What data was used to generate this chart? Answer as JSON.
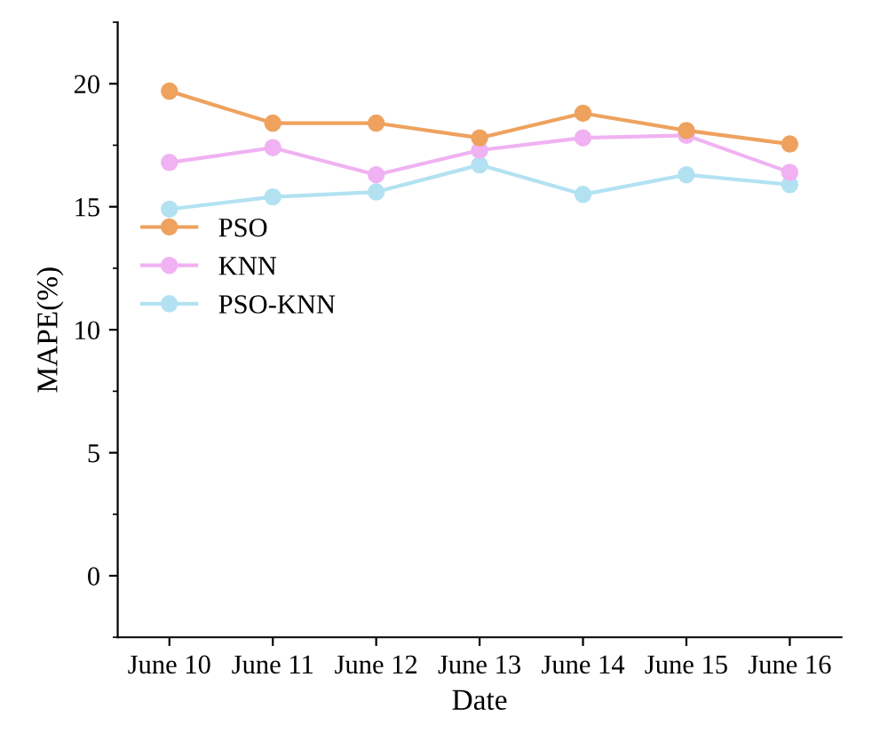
{
  "chart_data": {
    "type": "line",
    "xlabel": "Date",
    "ylabel": "MAPE(%)",
    "categories": [
      "June 10",
      "June 11",
      "June 12",
      "June 13",
      "June 14",
      "June 15",
      "June 16"
    ],
    "series": [
      {
        "name": "PSO",
        "color": "#eea25e",
        "values": [
          19.7,
          18.4,
          18.4,
          17.8,
          18.8,
          18.1,
          17.55
        ]
      },
      {
        "name": "KNN",
        "color": "#f0b2f2",
        "values": [
          16.8,
          17.4,
          16.3,
          17.3,
          17.8,
          17.9,
          16.4
        ]
      },
      {
        "name": "PSO-KNN",
        "color": "#b2e2f2",
        "values": [
          14.9,
          15.4,
          15.6,
          16.7,
          15.5,
          16.3,
          15.9
        ]
      }
    ],
    "ylim": [
      -2.5,
      22.5
    ],
    "yticks": [
      0,
      5,
      10,
      15,
      20
    ],
    "grid": false,
    "legend": "center left",
    "marker": "circle",
    "line_style": "solid"
  }
}
